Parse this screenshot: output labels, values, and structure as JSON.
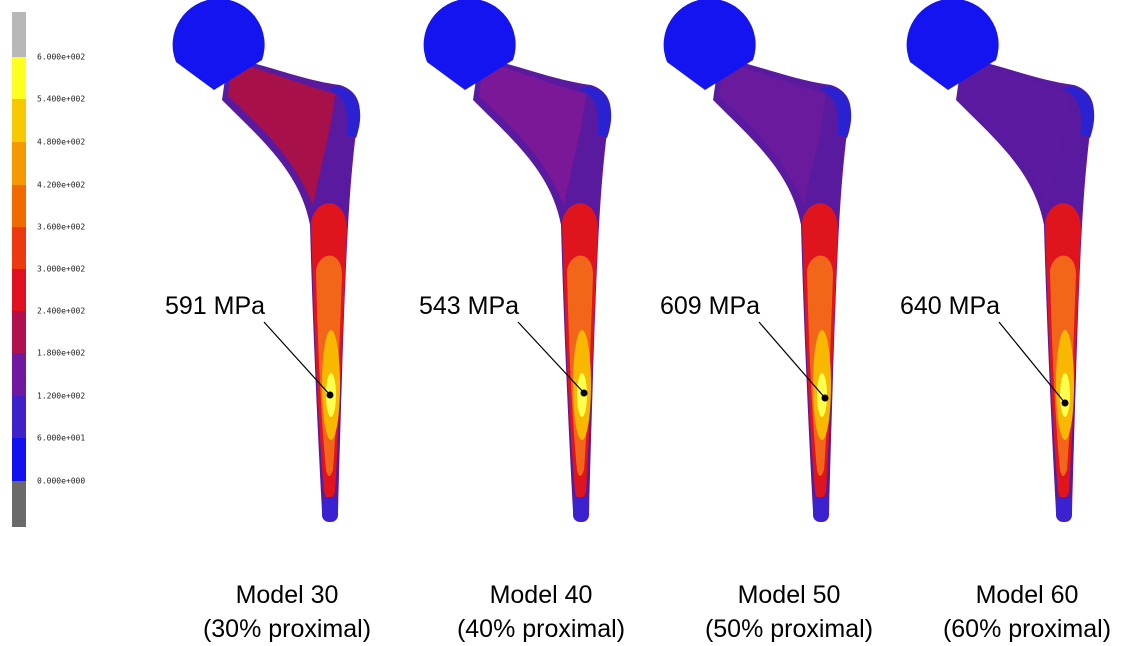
{
  "legend": {
    "labels": [
      "6.000e+002",
      "5.400e+002",
      "4.800e+002",
      "4.200e+002",
      "3.600e+002",
      "3.000e+002",
      "2.400e+002",
      "1.800e+002",
      "1.200e+002",
      "6.000e+001",
      "0.000e+000"
    ]
  },
  "models": [
    {
      "name": "Model 30",
      "subtitle": "(30% proximal)",
      "max_stress": "591 MPa"
    },
    {
      "name": "Model 40",
      "subtitle": "(40% proximal)",
      "max_stress": "543 MPa"
    },
    {
      "name": "Model 50",
      "subtitle": "(50% proximal)",
      "max_stress": "609 MPa"
    },
    {
      "name": "Model 60",
      "subtitle": "(60% proximal)",
      "max_stress": "640 MPa"
    }
  ]
}
